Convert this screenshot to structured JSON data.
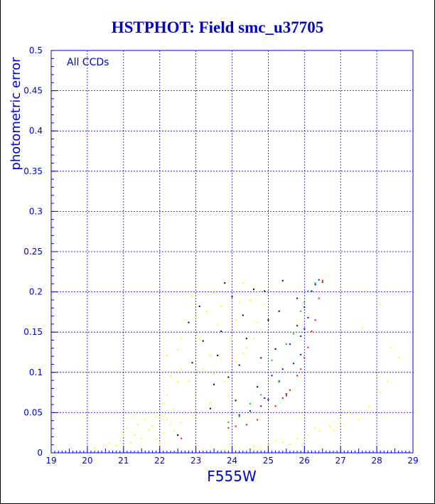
{
  "chart_data": {
    "type": "scatter",
    "title": "HSTPHOT: Field smc_u37705",
    "xlabel": "F555W",
    "ylabel": "photometric error",
    "annotation": "All CCDs",
    "xlim": [
      19,
      29
    ],
    "ylim": [
      0,
      0.5
    ],
    "x_ticks": [
      "19",
      "20",
      "21",
      "22",
      "23",
      "24",
      "25",
      "26",
      "27",
      "28",
      "29"
    ],
    "y_ticks": [
      "0",
      "0.05",
      "0.1",
      "0.15",
      "0.2",
      "0.25",
      "0.3",
      "0.35",
      "0.4",
      "0.45",
      "0.5"
    ],
    "grid": true,
    "colors": {
      "axis": "#0000cc",
      "title": "#0000cc",
      "frame": "#000000",
      "yellow": "#ffff00",
      "blue": "#0000ff",
      "red": "#ff0000",
      "green": "#00cc00",
      "black": "#000000"
    },
    "series": [
      {
        "color": "yellow",
        "points": [
          [
            23.7,
            0.182
          ],
          [
            23.0,
            0.168
          ],
          [
            22.2,
            0.121
          ],
          [
            23.5,
            0.198
          ],
          [
            24.3,
            0.211
          ],
          [
            24.0,
            0.142
          ],
          [
            22.6,
            0.142
          ],
          [
            24.6,
            0.204
          ],
          [
            22.9,
            0.046
          ],
          [
            23.2,
            0.104
          ],
          [
            22.5,
            0.088
          ],
          [
            24.1,
            0.165
          ],
          [
            24.5,
            0.189
          ],
          [
            23.5,
            0.098
          ],
          [
            22.2,
            0.072
          ],
          [
            23.7,
            0.116
          ],
          [
            22.9,
            0.195
          ],
          [
            24.6,
            0.142
          ],
          [
            24.3,
            0.124
          ],
          [
            22.6,
            0.104
          ],
          [
            23.9,
            0.213
          ],
          [
            23.1,
            0.142
          ],
          [
            22.4,
            0.054
          ],
          [
            24.8,
            0.201
          ],
          [
            23.0,
            0.073
          ],
          [
            23.8,
            0.088
          ],
          [
            22.7,
            0.165
          ],
          [
            24.1,
            0.113
          ],
          [
            24.7,
            0.162
          ],
          [
            22.3,
            0.096
          ],
          [
            23.6,
            0.159
          ],
          [
            24.2,
            0.187
          ],
          [
            23.4,
            0.121
          ],
          [
            22.8,
            0.089
          ],
          [
            24.9,
            0.185
          ],
          [
            23.4,
            0.062
          ],
          [
            23.3,
            0.176
          ],
          [
            24.4,
            0.131
          ],
          [
            22.5,
            0.128
          ],
          [
            22.1,
            0.061
          ],
          [
            23.9,
            0.071
          ],
          [
            24.8,
            0.154
          ],
          [
            22.0,
            0.044
          ],
          [
            21.3,
            0.022
          ],
          [
            21.8,
            0.033
          ],
          [
            21.6,
            0.041
          ],
          [
            22.1,
            0.025
          ],
          [
            21.9,
            0.017
          ],
          [
            21.2,
            0.012
          ],
          [
            21.7,
            0.029
          ],
          [
            22.3,
            0.035
          ],
          [
            22.0,
            0.011
          ],
          [
            20.8,
            0.009
          ],
          [
            20.2,
            0.006
          ],
          [
            21.1,
            0.031
          ],
          [
            21.5,
            0.018
          ],
          [
            21.4,
            0.035
          ],
          [
            21.9,
            0.045
          ],
          [
            21.0,
            0.022
          ],
          [
            22.4,
            0.027
          ],
          [
            22.2,
            0.042
          ],
          [
            20.9,
            0.015
          ],
          [
            20.6,
            0.012
          ],
          [
            21.3,
            0.047
          ],
          [
            22.6,
            0.038
          ],
          [
            21.5,
            0.006
          ],
          [
            23.0,
            0.002
          ],
          [
            23.4,
            0.003
          ],
          [
            23.8,
            0.004
          ],
          [
            24.2,
            0.006
          ],
          [
            24.6,
            0.008
          ],
          [
            25.0,
            0.01
          ],
          [
            25.4,
            0.013
          ],
          [
            25.8,
            0.018
          ],
          [
            26.1,
            0.022
          ],
          [
            26.4,
            0.027
          ],
          [
            26.7,
            0.033
          ],
          [
            27.0,
            0.04
          ],
          [
            27.3,
            0.048
          ],
          [
            23.2,
            0.005
          ],
          [
            24.0,
            0.003
          ],
          [
            24.8,
            0.006
          ],
          [
            25.2,
            0.015
          ],
          [
            25.6,
            0.011
          ],
          [
            26.0,
            0.016
          ],
          [
            26.3,
            0.031
          ],
          [
            26.8,
            0.028
          ],
          [
            27.1,
            0.034
          ],
          [
            27.5,
            0.041
          ],
          [
            27.8,
            0.058
          ],
          [
            28.1,
            0.075
          ],
          [
            28.3,
            0.088
          ],
          [
            28.0,
            0.095
          ],
          [
            27.6,
            0.155
          ],
          [
            28.4,
            0.131
          ],
          [
            27.7,
            0.201
          ],
          [
            28.6,
            0.118
          ],
          [
            28.1,
            0.185
          ]
        ]
      },
      {
        "color": "blue",
        "points": [
          [
            25.8,
            0.158
          ],
          [
            26.0,
            0.181
          ],
          [
            25.4,
            0.104
          ],
          [
            25.9,
            0.122
          ],
          [
            26.2,
            0.201
          ],
          [
            25.0,
            0.066
          ],
          [
            25.6,
            0.135
          ],
          [
            26.1,
            0.168
          ],
          [
            24.8,
            0.058
          ],
          [
            25.3,
            0.089
          ],
          [
            26.3,
            0.209
          ],
          [
            25.7,
            0.111
          ],
          [
            24.5,
            0.052
          ],
          [
            25.1,
            0.096
          ],
          [
            25.9,
            0.145
          ],
          [
            26.0,
            0.154
          ],
          [
            24.2,
            0.047
          ],
          [
            25.5,
            0.073
          ],
          [
            26.4,
            0.215
          ],
          [
            25.8,
            0.192
          ],
          [
            24.9,
            0.068
          ]
        ]
      },
      {
        "color": "red",
        "points": [
          [
            25.2,
            0.058
          ],
          [
            25.6,
            0.078
          ],
          [
            25.9,
            0.104
          ],
          [
            26.1,
            0.131
          ],
          [
            26.3,
            0.165
          ],
          [
            26.5,
            0.212
          ],
          [
            24.7,
            0.041
          ],
          [
            26.2,
            0.151
          ],
          [
            25.8,
            0.096
          ],
          [
            24.4,
            0.035
          ],
          [
            26.4,
            0.192
          ],
          [
            25.4,
            0.068
          ],
          [
            23.9,
            0.031
          ],
          [
            26.5,
            0.214
          ],
          [
            26.0,
            0.118
          ],
          [
            22.6,
            0.018
          ],
          [
            24.1,
            0.033
          ],
          [
            25.5,
            0.071
          ]
        ]
      },
      {
        "color": "green",
        "points": [
          [
            25.7,
            0.148
          ],
          [
            25.3,
            0.088
          ],
          [
            24.8,
            0.072
          ],
          [
            26.1,
            0.201
          ],
          [
            24.2,
            0.045
          ],
          [
            25.9,
            0.176
          ],
          [
            26.3,
            0.211
          ],
          [
            25.1,
            0.115
          ],
          [
            24.5,
            0.061
          ],
          [
            23.9,
            0.038
          ],
          [
            26.0,
            0.187
          ],
          [
            25.5,
            0.135
          ]
        ]
      },
      {
        "color": "black",
        "points": [
          [
            23.9,
            0.094
          ],
          [
            24.3,
            0.171
          ],
          [
            24.6,
            0.203
          ],
          [
            23.7,
            0.151
          ],
          [
            23.5,
            0.085
          ],
          [
            24.1,
            0.065
          ],
          [
            23.2,
            0.139
          ],
          [
            25.0,
            0.165
          ],
          [
            24.8,
            0.118
          ],
          [
            22.8,
            0.162
          ],
          [
            24.7,
            0.082
          ],
          [
            25.4,
            0.214
          ],
          [
            24.0,
            0.194
          ],
          [
            25.2,
            0.129
          ],
          [
            23.4,
            0.055
          ],
          [
            24.9,
            0.201
          ],
          [
            23.1,
            0.182
          ],
          [
            24.2,
            0.109
          ],
          [
            23.6,
            0.121
          ],
          [
            25.3,
            0.176
          ],
          [
            22.5,
            0.022
          ],
          [
            23.8,
            0.211
          ],
          [
            22.9,
            0.112
          ],
          [
            24.4,
            0.142
          ]
        ]
      }
    ]
  }
}
